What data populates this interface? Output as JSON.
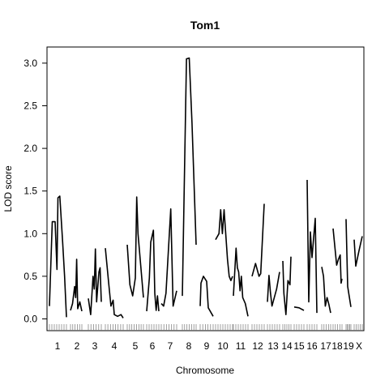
{
  "chart_data": {
    "type": "line",
    "title": "Tom1",
    "xlabel": "Chromosome",
    "ylabel": "LOD score",
    "ylim": [
      0,
      3
    ],
    "yticks": [
      "0.0",
      "0.5",
      "1.0",
      "1.5",
      "2.0",
      "2.5",
      "3.0"
    ],
    "chromosomes": [
      "1",
      "2",
      "3",
      "4",
      "5",
      "6",
      "7",
      "8",
      "9",
      "10",
      "11",
      "12",
      "13",
      "14",
      "15",
      "16",
      "17",
      "18",
      "19",
      "X"
    ],
    "series": [
      {
        "chr": "1",
        "points": [
          [
            0,
            0.15
          ],
          [
            3,
            1.14
          ],
          [
            6,
            1.14
          ],
          [
            8,
            0.58
          ],
          [
            9,
            1.42
          ],
          [
            11,
            1.44
          ],
          [
            14,
            0.9
          ],
          [
            16,
            0.5
          ],
          [
            18,
            0.02
          ]
        ]
      },
      {
        "chr": "2",
        "points": [
          [
            0,
            0.1
          ],
          [
            2,
            0.18
          ],
          [
            4,
            0.38
          ],
          [
            5,
            0.25
          ],
          [
            6,
            0.7
          ],
          [
            7,
            0.12
          ],
          [
            9,
            0.2
          ],
          [
            11,
            0.09
          ]
        ]
      },
      {
        "chr": "3",
        "points": [
          [
            0,
            0.24
          ],
          [
            2,
            0.05
          ],
          [
            4,
            0.5
          ],
          [
            5,
            0.35
          ],
          [
            6,
            0.82
          ],
          [
            7,
            0.2
          ],
          [
            9,
            0.55
          ],
          [
            10,
            0.6
          ],
          [
            11,
            0.2
          ]
        ]
      },
      {
        "chr": "4",
        "points": [
          [
            0,
            0.83
          ],
          [
            3,
            0.42
          ],
          [
            5,
            0.15
          ],
          [
            7,
            0.22
          ],
          [
            8,
            0.05
          ],
          [
            11,
            0.03
          ],
          [
            14,
            0.05
          ],
          [
            16,
            0.01
          ]
        ]
      },
      {
        "chr": "5",
        "points": [
          [
            0,
            0.87
          ],
          [
            2,
            0.4
          ],
          [
            4,
            0.27
          ],
          [
            6,
            0.48
          ],
          [
            7,
            1.43
          ],
          [
            8,
            1.0
          ],
          [
            12,
            0.25
          ]
        ]
      },
      {
        "chr": "6",
        "points": [
          [
            0,
            0.09
          ],
          [
            2,
            0.48
          ],
          [
            3,
            0.9
          ],
          [
            5,
            1.04
          ],
          [
            6,
            0.3
          ],
          [
            7,
            0.1
          ],
          [
            8,
            0.27
          ],
          [
            9,
            0.09
          ]
        ]
      },
      {
        "chr": "7",
        "points": [
          [
            0,
            0.18
          ],
          [
            2,
            0.15
          ],
          [
            4,
            0.3
          ],
          [
            7,
            1.04
          ],
          [
            8,
            1.29
          ],
          [
            10,
            0.15
          ],
          [
            13,
            0.33
          ]
        ]
      },
      {
        "chr": "8",
        "points": [
          [
            0,
            0.27
          ],
          [
            3,
            3.05
          ],
          [
            5,
            3.06
          ],
          [
            7,
            2.3
          ],
          [
            10,
            0.87
          ]
        ]
      },
      {
        "chr": "9",
        "points": [
          [
            0,
            0.15
          ],
          [
            0.5,
            0.42
          ],
          [
            2,
            0.5
          ],
          [
            4,
            0.44
          ],
          [
            5,
            0.13
          ],
          [
            8,
            0.03
          ]
        ]
      },
      {
        "chr": "10",
        "points": [
          [
            0,
            0.93
          ],
          [
            2,
            1.0
          ],
          [
            3,
            1.28
          ],
          [
            4,
            1.0
          ],
          [
            5,
            1.28
          ],
          [
            7,
            0.7
          ],
          [
            8,
            0.5
          ],
          [
            9,
            0.45
          ],
          [
            10,
            0.5
          ]
        ]
      },
      {
        "chr": "11",
        "points": [
          [
            0,
            0.27
          ],
          [
            2,
            0.83
          ],
          [
            3,
            0.6
          ],
          [
            4,
            0.55
          ],
          [
            5,
            0.33
          ],
          [
            6,
            0.5
          ],
          [
            7,
            0.25
          ],
          [
            9,
            0.18
          ],
          [
            11,
            0.03
          ]
        ]
      },
      {
        "chr": "12",
        "points": [
          [
            0,
            0.5
          ],
          [
            2,
            0.65
          ],
          [
            4,
            0.5
          ],
          [
            5,
            0.53
          ],
          [
            7,
            1.35
          ]
        ]
      },
      {
        "chr": "13",
        "points": [
          [
            0,
            0.2
          ],
          [
            1,
            0.51
          ],
          [
            2,
            0.3
          ],
          [
            3,
            0.15
          ],
          [
            6,
            0.35
          ],
          [
            8,
            0.55
          ]
        ]
      },
      {
        "chr": "14",
        "points": [
          [
            0,
            0.68
          ],
          [
            1,
            0.3
          ],
          [
            3,
            0.05
          ],
          [
            5,
            0.45
          ],
          [
            7,
            0.4
          ],
          [
            8,
            0.73
          ]
        ]
      },
      {
        "chr": "15",
        "points": [
          [
            0,
            0.14
          ],
          [
            3,
            0.13
          ],
          [
            6,
            0.1
          ]
        ]
      },
      {
        "chr": "16",
        "points": [
          [
            0,
            1.63
          ],
          [
            1,
            0.2
          ],
          [
            2,
            1.02
          ],
          [
            3,
            0.72
          ],
          [
            4,
            0.95
          ],
          [
            5,
            1.18
          ],
          [
            6,
            0.07
          ]
        ]
      },
      {
        "chr": "17",
        "points": [
          [
            0,
            0.61
          ],
          [
            1,
            0.5
          ],
          [
            2,
            0.15
          ],
          [
            3,
            0.25
          ],
          [
            4,
            0.17
          ],
          [
            5,
            0.07
          ]
        ]
      },
      {
        "chr": "18",
        "points": [
          [
            0,
            1.06
          ],
          [
            2,
            0.63
          ],
          [
            3,
            0.7
          ],
          [
            4,
            0.75
          ],
          [
            4.5,
            0.42
          ],
          [
            5,
            0.47
          ]
        ]
      },
      {
        "chr": "19",
        "points": [
          [
            0,
            1.17
          ],
          [
            1,
            0.38
          ],
          [
            3,
            0.14
          ]
        ]
      },
      {
        "chr": "X",
        "points": [
          [
            0,
            0.93
          ],
          [
            1,
            0.62
          ],
          [
            3,
            0.8
          ],
          [
            5,
            0.97
          ]
        ]
      }
    ]
  }
}
